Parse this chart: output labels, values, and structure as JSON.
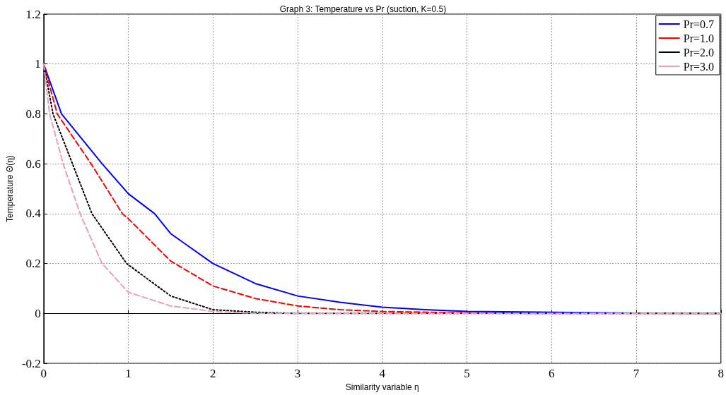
{
  "chart_data": {
    "type": "line",
    "title": "Graph 3: Temperature vs Pr (suction, K=0.5)",
    "xlabel": "Similarity variable η",
    "ylabel": "Temperature Θ(η)",
    "xlim": [
      0,
      8
    ],
    "xticks": [
      0,
      1,
      2,
      3,
      4,
      5,
      6,
      7,
      8
    ],
    "ylim": [
      -0.2,
      1.2
    ],
    "yticks": [
      -0.2,
      0,
      0.2,
      0.4,
      0.6,
      0.8,
      1,
      1.2
    ],
    "grid": true,
    "legend": "top right",
    "marker": "none",
    "series": [
      {
        "name": "Pr=0.7",
        "color": "#0000ff",
        "line_style": "solid",
        "x": [
          0,
          0.21,
          0.69,
          1,
          1.31,
          1.5,
          2,
          2.5,
          3,
          3.5,
          4,
          4.5,
          5,
          7,
          8
        ],
        "values": [
          1,
          0.8,
          0.6,
          0.48,
          0.4,
          0.32,
          0.2,
          0.12,
          0.07,
          0.045,
          0.025,
          0.015,
          0.008,
          0.001,
          0
        ]
      },
      {
        "name": "Pr=1.0",
        "color": "#ff0000",
        "line_style": "dashed",
        "x": [
          0,
          0.16,
          0.56,
          0.93,
          1,
          1.5,
          2,
          2.5,
          3,
          3.5,
          4,
          5,
          6,
          8
        ],
        "values": [
          1,
          0.8,
          0.6,
          0.4,
          0.38,
          0.21,
          0.11,
          0.06,
          0.03,
          0.015,
          0.008,
          0.002,
          0,
          0
        ]
      },
      {
        "name": "Pr=2.0",
        "color": "#000000",
        "line_style": "dotted",
        "x": [
          0,
          0.11,
          0.34,
          0.57,
          0.98,
          1.5,
          2,
          2.5,
          3,
          4,
          6,
          8
        ],
        "values": [
          1,
          0.8,
          0.6,
          0.4,
          0.2,
          0.07,
          0.015,
          0.005,
          0,
          0,
          0,
          0
        ]
      },
      {
        "name": "Pr=3.0",
        "color": "#e8a0c0",
        "line_style": "dashed",
        "x": [
          0,
          0.07,
          0.23,
          0.43,
          0.69,
          1,
          1.5,
          2,
          2.5,
          3,
          8
        ],
        "values": [
          1,
          0.8,
          0.6,
          0.4,
          0.2,
          0.085,
          0.03,
          0.008,
          0,
          0,
          0
        ]
      }
    ]
  }
}
